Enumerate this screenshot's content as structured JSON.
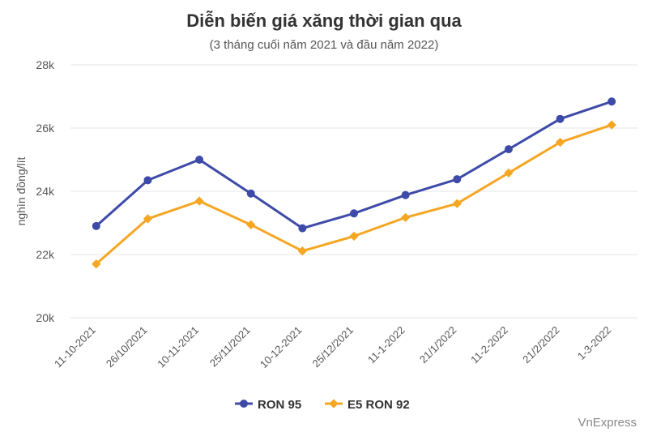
{
  "chart_data": {
    "type": "line",
    "title": "Diễn biến giá xăng thời gian qua",
    "subtitle": "(3 tháng cuối năm 2021 và đầu năm 2022)",
    "ylabel": "nghìn đồng/lít",
    "xlabel": "",
    "ylim": [
      20000,
      28000
    ],
    "yticks": [
      {
        "value": 20000,
        "label": "20k"
      },
      {
        "value": 22000,
        "label": "22k"
      },
      {
        "value": 24000,
        "label": "24k"
      },
      {
        "value": 26000,
        "label": "26k"
      },
      {
        "value": 28000,
        "label": "28k"
      }
    ],
    "categories": [
      "11-10-2021",
      "26/10/2021",
      "10-11-2021",
      "25/11/2021",
      "10-12-2021",
      "25/12/2021",
      "11-1-2022",
      "21/1/2022",
      "11-2-2022",
      "21/2/2022",
      "1-3-2022"
    ],
    "series": [
      {
        "name": "RON 95",
        "color": "#3d4aa8",
        "marker": "circle",
        "values": [
          22900,
          24350,
          25000,
          23930,
          22830,
          23300,
          23880,
          24380,
          25330,
          26290,
          26840
        ]
      },
      {
        "name": "E5 RON 92",
        "color": "#f5a623",
        "marker": "diamond",
        "values": [
          21700,
          23130,
          23690,
          22940,
          22110,
          22580,
          23170,
          23610,
          24580,
          25550,
          26100
        ]
      }
    ],
    "grid": true,
    "legend": "bottom-center",
    "credit": "VnExpress"
  }
}
